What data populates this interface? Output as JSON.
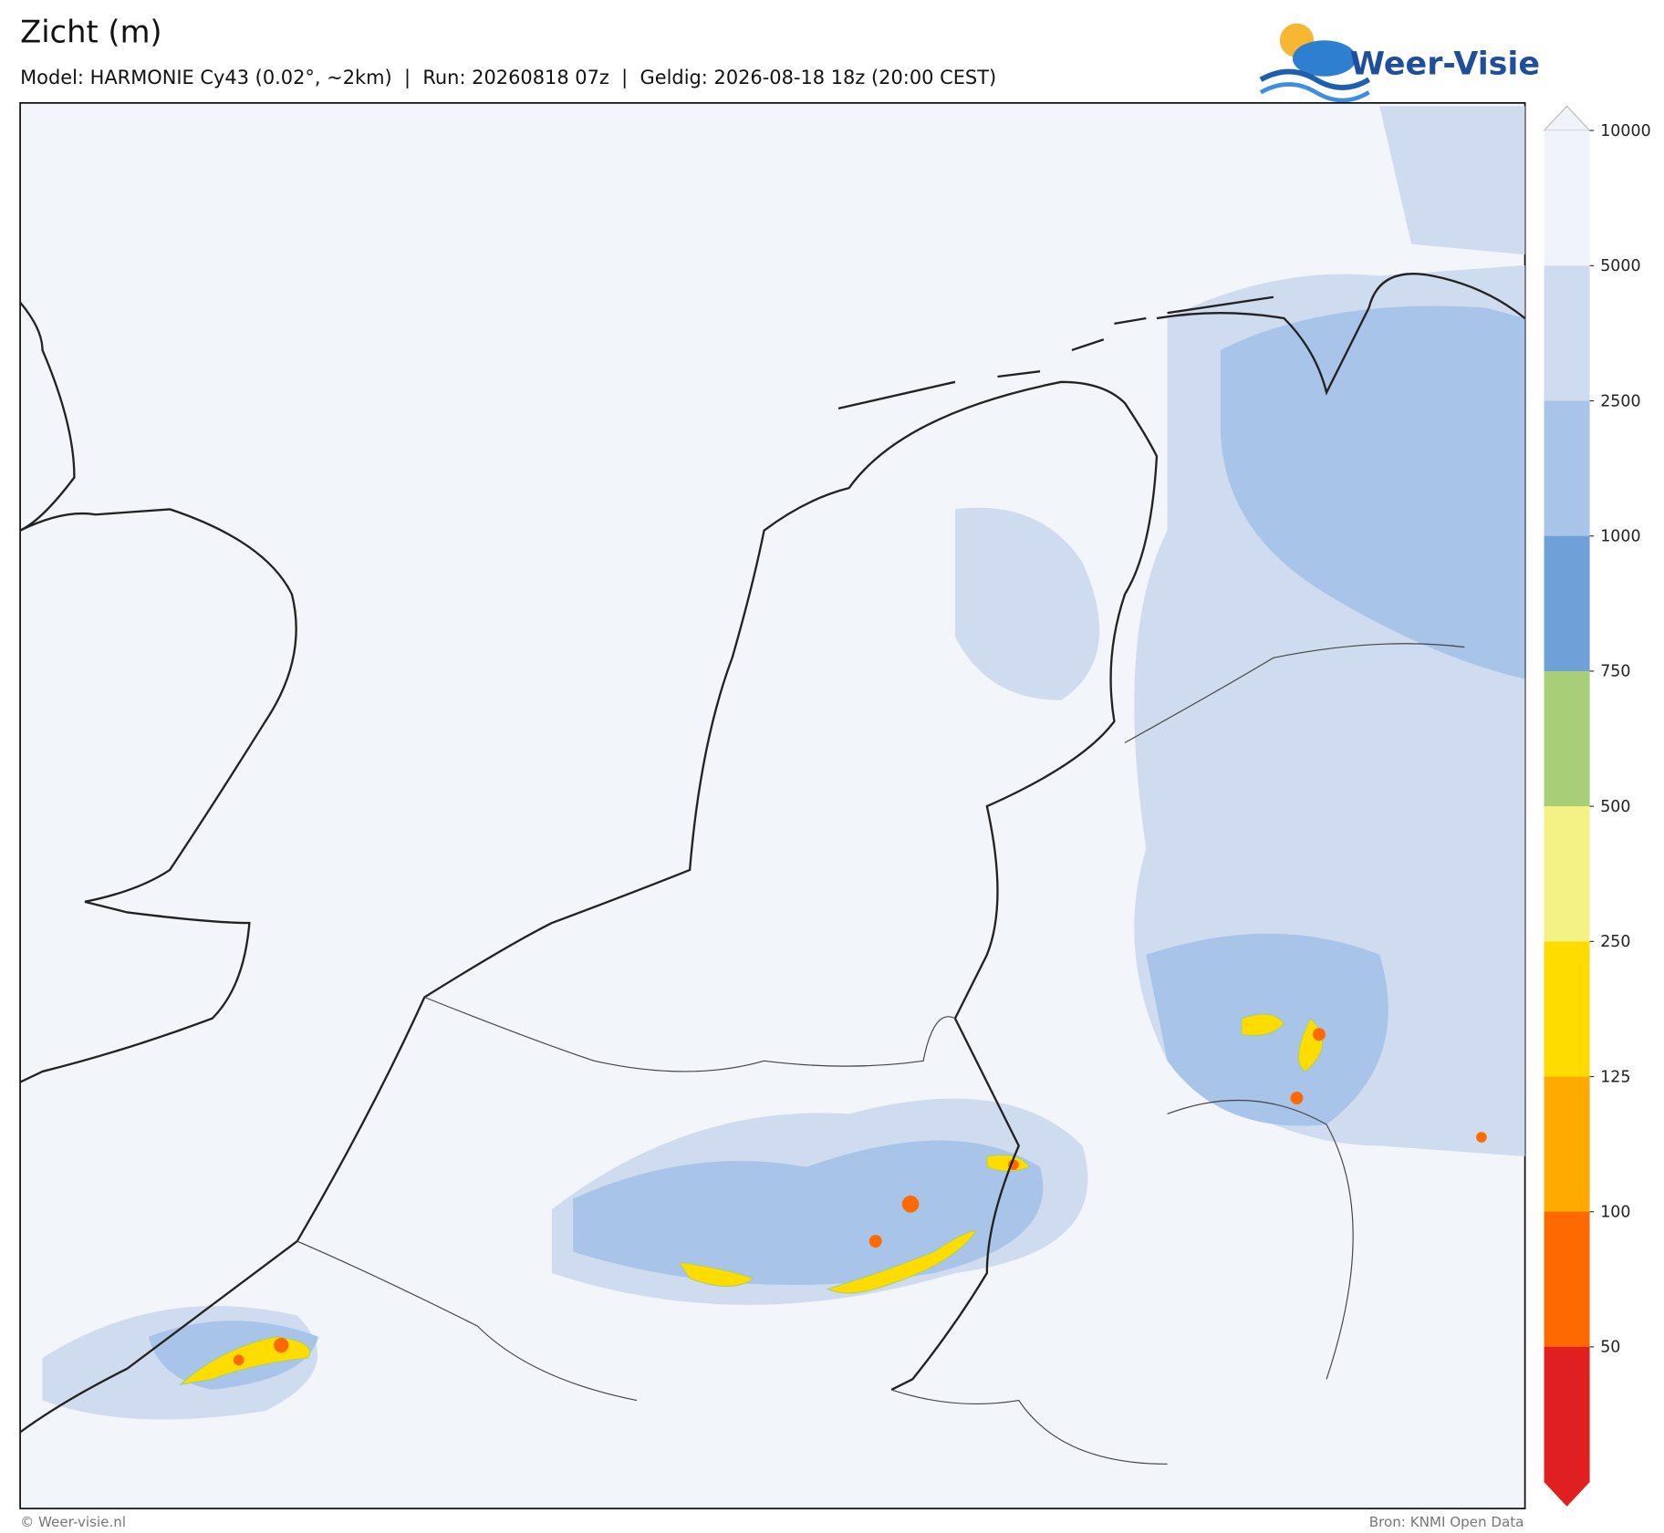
{
  "header": {
    "title": "Zicht (m)",
    "subtitle": "Model: HARMONIE Cy43 (0.02°, ~2km)  |  Run: 20260818 07z  |  Geldig: 2026-08-18 18z (20:00 CEST)"
  },
  "logo": "Weer-Visie",
  "legend": {
    "levels": [
      10000,
      5000,
      2500,
      1000,
      750,
      500,
      250,
      125,
      100,
      50
    ],
    "colors": [
      "#f0f4fa",
      "#cfdcef",
      "#a8c4e8",
      "#6fa0d8",
      "#a8cf78",
      "#f4f285",
      "#ffdc00",
      "#ffaa00",
      "#ff6a00",
      "#e02020"
    ]
  },
  "footer": {
    "left": "© Weer-visie.nl",
    "right": "Bron: KNMI Open Data"
  }
}
